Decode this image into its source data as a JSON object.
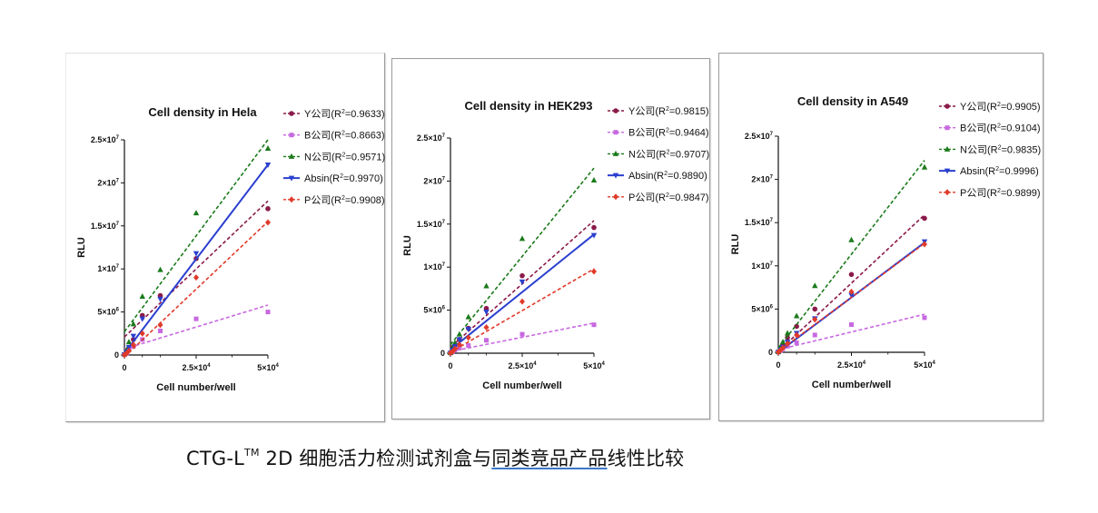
{
  "caption": {
    "prefix": "CTG-L",
    "superscript": "TM",
    "middle": " 2D 细胞活力检测试剂盒与",
    "underlined": "同类竞品产品",
    "suffix": "线性比较"
  },
  "chart_data": [
    {
      "type": "scatter",
      "title": "Cell density in Hela",
      "xlabel": "Cell number/well",
      "ylabel": "RLU",
      "xlim": [
        0,
        50000
      ],
      "ylim": [
        0,
        25000000
      ],
      "x_ticks": [
        {
          "value": 0,
          "mant": "0",
          "exp": ""
        },
        {
          "value": 25000,
          "mant": "2.5×10",
          "exp": "4"
        },
        {
          "value": 50000,
          "mant": "5×10",
          "exp": "4"
        }
      ],
      "y_ticks": [
        {
          "value": 0,
          "mant": "0",
          "exp": ""
        },
        {
          "value": 5000000,
          "mant": "5×10",
          "exp": "6"
        },
        {
          "value": 10000000,
          "mant": "1×10",
          "exp": "7"
        },
        {
          "value": 15000000,
          "mant": "1.5×10",
          "exp": "7"
        },
        {
          "value": 20000000,
          "mant": "2×10",
          "exp": "7"
        },
        {
          "value": 25000000,
          "mant": "2.5×10",
          "exp": "7"
        }
      ],
      "x": [
        0,
        781,
        1563,
        3125,
        6250,
        12500,
        25000,
        50000
      ],
      "legend_position": "top-right",
      "series": [
        {
          "name": "Y公司",
          "r2": "0.9633",
          "color": "#8b1a4a",
          "marker": "circle",
          "dash": true,
          "values": [
            50000,
            300000,
            800000,
            1800000,
            4600000,
            6900000,
            11200000,
            17000000
          ],
          "fit": [
            2100000,
            17900000
          ]
        },
        {
          "name": "B公司",
          "r2": "0.8663",
          "color": "#c768e0",
          "marker": "square",
          "dash": true,
          "values": [
            20000,
            200000,
            600000,
            1000000,
            1800000,
            2800000,
            4200000,
            5000000
          ],
          "fit": [
            700000,
            5800000
          ]
        },
        {
          "name": "N公司",
          "r2": "0.9571",
          "color": "#1a7a1a",
          "marker": "triangle",
          "dash": true,
          "values": [
            100000,
            600000,
            1500000,
            3600000,
            6800000,
            9900000,
            16500000,
            24000000
          ],
          "fit": [
            2700000,
            25000000
          ]
        },
        {
          "name": "Absin",
          "r2": "0.9970",
          "color": "#2a3fcf",
          "marker": "triangle-down",
          "dash": false,
          "values": [
            50000,
            300000,
            900000,
            2200000,
            4200000,
            6500000,
            11800000,
            22100000
          ],
          "fit": [
            200000,
            22100000
          ]
        },
        {
          "name": "P公司",
          "r2": "0.9908",
          "color": "#e03a2a",
          "marker": "diamond",
          "dash": true,
          "values": [
            30000,
            200000,
            500000,
            1200000,
            2500000,
            3500000,
            9000000,
            15400000
          ],
          "fit": [
            -200000,
            15500000
          ]
        }
      ]
    },
    {
      "type": "scatter",
      "title": "Cell density in HEK293",
      "xlabel": "Cell number/well",
      "ylabel": "RLU",
      "xlim": [
        0,
        50000
      ],
      "ylim": [
        0,
        25000000
      ],
      "x_ticks": [
        {
          "value": 0,
          "mant": "0",
          "exp": ""
        },
        {
          "value": 25000,
          "mant": "2.5×10",
          "exp": "4"
        },
        {
          "value": 50000,
          "mant": "5×10",
          "exp": "4"
        }
      ],
      "y_ticks": [
        {
          "value": 0,
          "mant": "0",
          "exp": ""
        },
        {
          "value": 5000000,
          "mant": "5×10",
          "exp": "6"
        },
        {
          "value": 10000000,
          "mant": "1×10",
          "exp": "7"
        },
        {
          "value": 15000000,
          "mant": "1.5×10",
          "exp": "7"
        },
        {
          "value": 20000000,
          "mant": "2×10",
          "exp": "7"
        },
        {
          "value": 25000000,
          "mant": "2.5×10",
          "exp": "7"
        }
      ],
      "x": [
        0,
        781,
        1563,
        3125,
        6250,
        12500,
        25000,
        50000
      ],
      "legend_position": "top-right",
      "series": [
        {
          "name": "Y公司",
          "r2": "0.9815",
          "color": "#8b1a4a",
          "marker": "circle",
          "dash": true,
          "values": [
            30000,
            400000,
            900000,
            1600000,
            2900000,
            5200000,
            9000000,
            14600000
          ],
          "fit": [
            700000,
            15400000
          ]
        },
        {
          "name": "B公司",
          "r2": "0.9464",
          "color": "#c768e0",
          "marker": "square",
          "dash": true,
          "values": [
            20000,
            150000,
            350000,
            600000,
            900000,
            1500000,
            2200000,
            3300000
          ],
          "fit": [
            200000,
            3500000
          ]
        },
        {
          "name": "N公司",
          "r2": "0.9707",
          "color": "#1a7a1a",
          "marker": "triangle",
          "dash": true,
          "values": [
            50000,
            700000,
            1200000,
            2200000,
            4200000,
            7800000,
            13300000,
            20100000
          ],
          "fit": [
            1000000,
            21500000
          ]
        },
        {
          "name": "Absin",
          "r2": "0.9890",
          "color": "#2a3fcf",
          "marker": "triangle-down",
          "dash": false,
          "values": [
            30000,
            300000,
            800000,
            1600000,
            2800000,
            4800000,
            8300000,
            13700000
          ],
          "fit": [
            400000,
            13800000
          ]
        },
        {
          "name": "P公司",
          "r2": "0.9847",
          "color": "#e03a2a",
          "marker": "diamond",
          "dash": true,
          "values": [
            20000,
            200000,
            500000,
            1000000,
            1800000,
            3000000,
            6000000,
            9500000
          ],
          "fit": [
            100000,
            9800000
          ]
        }
      ]
    },
    {
      "type": "scatter",
      "title": "Cell density in A549",
      "xlabel": "Cell number/well",
      "ylabel": "RLU",
      "xlim": [
        0,
        50000
      ],
      "ylim": [
        0,
        25000000
      ],
      "x_ticks": [
        {
          "value": 0,
          "mant": "0",
          "exp": ""
        },
        {
          "value": 25000,
          "mant": "2.5×10",
          "exp": "4"
        },
        {
          "value": 50000,
          "mant": "5×10",
          "exp": "4"
        }
      ],
      "y_ticks": [
        {
          "value": 0,
          "mant": "0",
          "exp": ""
        },
        {
          "value": 5000000,
          "mant": "5×10",
          "exp": "6"
        },
        {
          "value": 10000000,
          "mant": "1×10",
          "exp": "7"
        },
        {
          "value": 15000000,
          "mant": "1.5×10",
          "exp": "7"
        },
        {
          "value": 20000000,
          "mant": "2×10",
          "exp": "7"
        },
        {
          "value": 25000000,
          "mant": "2.5×10",
          "exp": "7"
        }
      ],
      "x": [
        0,
        781,
        1563,
        3125,
        6250,
        12500,
        25000,
        50000
      ],
      "legend_position": "top-right",
      "series": [
        {
          "name": "Y公司",
          "r2": "0.9905",
          "color": "#8b1a4a",
          "marker": "circle",
          "dash": true,
          "values": [
            30000,
            400000,
            900000,
            1700000,
            3000000,
            5000000,
            9000000,
            15500000
          ],
          "fit": [
            100000,
            15900000
          ]
        },
        {
          "name": "B公司",
          "r2": "0.9104",
          "color": "#c768e0",
          "marker": "square",
          "dash": true,
          "values": [
            20000,
            200000,
            400000,
            700000,
            1100000,
            2000000,
            3200000,
            4000000
          ],
          "fit": [
            300000,
            4400000
          ]
        },
        {
          "name": "N公司",
          "r2": "0.9835",
          "color": "#1a7a1a",
          "marker": "triangle",
          "dash": true,
          "values": [
            50000,
            600000,
            1200000,
            2200000,
            4200000,
            7700000,
            13000000,
            21400000
          ],
          "fit": [
            500000,
            22200000
          ]
        },
        {
          "name": "Absin",
          "r2": "0.9996",
          "color": "#2a3fcf",
          "marker": "triangle-down",
          "dash": false,
          "values": [
            30000,
            300000,
            600000,
            1200000,
            2200000,
            3900000,
            6600000,
            12800000
          ],
          "fit": [
            0,
            12700000
          ]
        },
        {
          "name": "P公司",
          "r2": "0.9899",
          "color": "#e03a2a",
          "marker": "diamond",
          "dash": true,
          "values": [
            20000,
            250000,
            500000,
            1000000,
            2000000,
            3800000,
            7000000,
            12500000
          ],
          "fit": [
            100000,
            12600000
          ]
        }
      ]
    }
  ]
}
